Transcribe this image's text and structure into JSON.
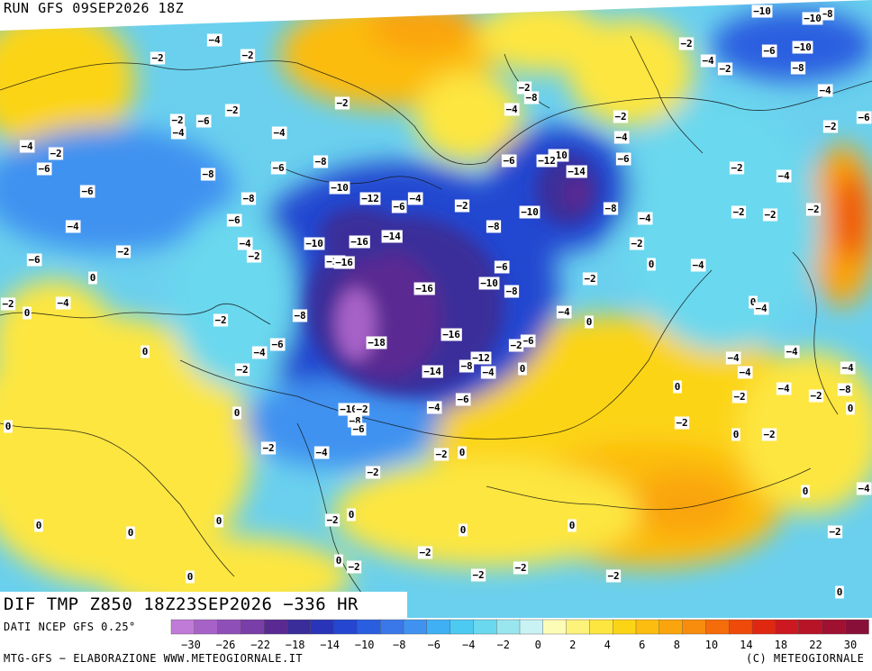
{
  "header": {
    "run_label": "RUN GFS 09SEP2026 18Z"
  },
  "map_title": "DIF TMP Z850 18Z23SEP2026 −336 HR",
  "footer": {
    "data_source": "DATI NCEP GFS 0.25°",
    "elaboration": "MTG-GFS − ELABORAZIONE WWW.METEOGIORNALE.IT",
    "copyright": "(C) METEOGIORNALE"
  },
  "legend": {
    "colors": [
      "#c07ad8",
      "#a762c8",
      "#8f4fb8",
      "#7a3ea8",
      "#5a2a92",
      "#3a2d9a",
      "#2a34b8",
      "#2446d0",
      "#2a5ee0",
      "#3a78ea",
      "#3f92f0",
      "#3fb0f4",
      "#4ccaf2",
      "#6ad8ee",
      "#9ae6ee",
      "#c8f2f4",
      "#fdfcb6",
      "#fdf27a",
      "#fde640",
      "#fcd416",
      "#fcbc10",
      "#faa40e",
      "#f88c0c",
      "#f56c0a",
      "#ee4a0a",
      "#e02810",
      "#cc1820",
      "#b81428",
      "#a01030",
      "#881038"
    ],
    "tick_labels": [
      "−30",
      "−26",
      "−22",
      "−18",
      "−14",
      "−10",
      "−8",
      "−6",
      "−4",
      "−2",
      "0",
      "2",
      "4",
      "6",
      "8",
      "10",
      "14",
      "18",
      "22",
      "30"
    ]
  },
  "contour_labels": [
    "-2",
    "-4",
    "-6",
    "-8",
    "-10",
    "-12",
    "-14",
    "-16",
    "-18",
    "0"
  ]
}
